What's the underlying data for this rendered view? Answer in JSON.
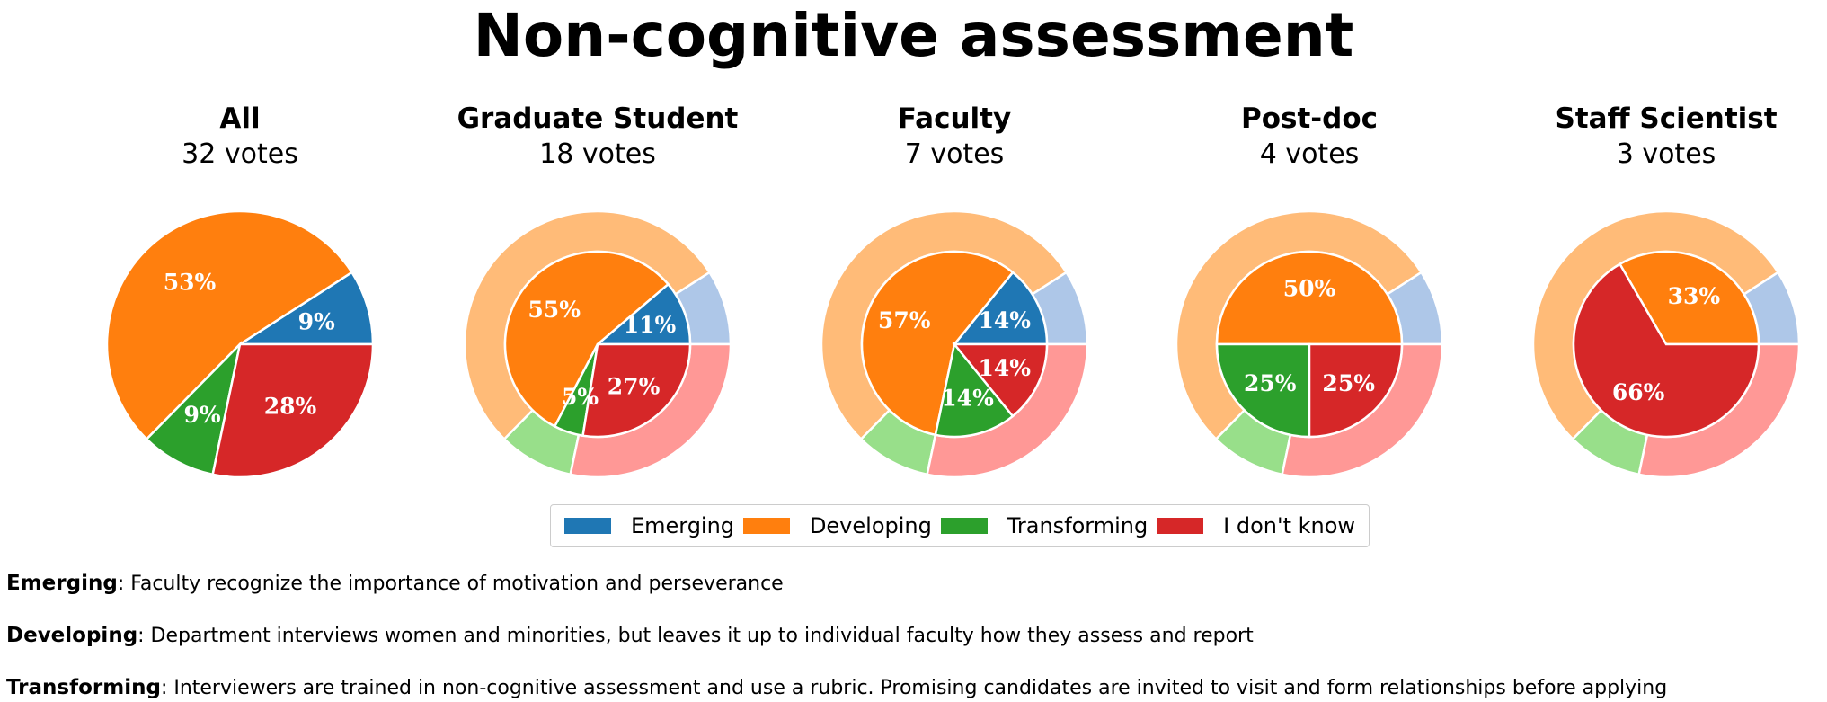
{
  "title": "Non-cognitive assessment",
  "colors": {
    "Emerging": "#1f77b4",
    "Developing": "#ff7f0e",
    "Transforming": "#2ca02c",
    "I don't know": "#d62728"
  },
  "outer_colors": {
    "Emerging": "#aec7e8",
    "Developing": "#ffbb78",
    "Transforming": "#98df8a",
    "I don't know": "#ff9896"
  },
  "legend": [
    "Emerging",
    "Developing",
    "Transforming",
    "I don't know"
  ],
  "chart_data": [
    {
      "type": "pie",
      "title": "All",
      "subtitle": "32 votes",
      "categories": [
        "Emerging",
        "Developing",
        "Transforming",
        "I don't know"
      ],
      "values": [
        9,
        53,
        9,
        28
      ],
      "labels": [
        "9%",
        "53%",
        "9%",
        "28%"
      ]
    },
    {
      "type": "pie",
      "title": "Graduate Student",
      "subtitle": "18 votes",
      "categories": [
        "Emerging",
        "Developing",
        "Transforming",
        "I don't know"
      ],
      "values": [
        11,
        55,
        5,
        27
      ],
      "labels": [
        "11%",
        "55%",
        "5%",
        "27%"
      ],
      "outer_values": [
        9,
        53,
        9,
        28
      ]
    },
    {
      "type": "pie",
      "title": "Faculty",
      "subtitle": "7 votes",
      "categories": [
        "Emerging",
        "Developing",
        "Transforming",
        "I don't know"
      ],
      "values": [
        14,
        57,
        14,
        14
      ],
      "labels": [
        "14%",
        "57%",
        "14%",
        "14%"
      ],
      "outer_values": [
        9,
        53,
        9,
        28
      ]
    },
    {
      "type": "pie",
      "title": "Post-doc",
      "subtitle": "4 votes",
      "categories": [
        "Emerging",
        "Developing",
        "Transforming",
        "I don't know"
      ],
      "values": [
        0,
        50,
        25,
        25
      ],
      "labels": [
        "",
        "50%",
        "25%",
        "25%"
      ],
      "outer_values": [
        9,
        53,
        9,
        28
      ]
    },
    {
      "type": "pie",
      "title": "Staff Scientist",
      "subtitle": "3 votes",
      "categories": [
        "Emerging",
        "Developing",
        "Transforming",
        "I don't know"
      ],
      "values": [
        0,
        33,
        0,
        66
      ],
      "labels": [
        "",
        "33%",
        "",
        "66%"
      ],
      "outer_values": [
        9,
        53,
        9,
        28
      ]
    }
  ],
  "definitions": [
    {
      "term": "Emerging",
      "text": ": Faculty recognize the importance of motivation and perseverance"
    },
    {
      "term": "Developing",
      "text": ": Department interviews women and minorities, but leaves it up to individual faculty how they assess and report"
    },
    {
      "term": "Transforming",
      "text": ": Interviewers are trained in non-cognitive assessment and use a rubric. Promising candidates are invited to visit and form relationships before applying"
    }
  ]
}
